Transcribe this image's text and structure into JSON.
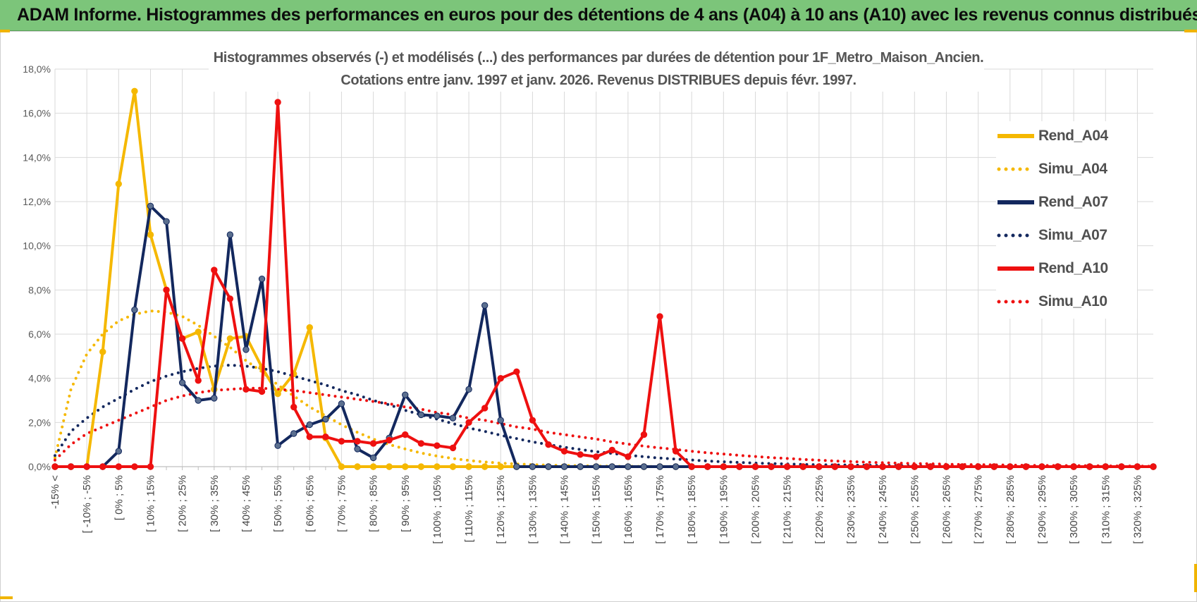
{
  "header": {
    "title": "ADAM Informe. Histogrammes des performances en euros pour des détentions de 4 ans (A04) à 10 ans (A10) avec les revenus connus distribués"
  },
  "chart_data": {
    "type": "line",
    "title": "Histogrammes observés (-) et modélisés (...) des performances par durées de détention pour 1F_Metro_Maison_Ancien.",
    "subtitle": "Cotations entre janv. 1997 et janv. 2026. Revenus DISTRIBUES depuis févr. 1997.",
    "xlabel": "",
    "ylabel": "",
    "ylim": [
      0,
      18
    ],
    "yticks": [
      "0,0%",
      "2,0%",
      "4,0%",
      "6,0%",
      "8,0%",
      "10,0%",
      "12,0%",
      "14,0%",
      "16,0%",
      "18,0%"
    ],
    "x_tick_labels": [
      "-15% <",
      "[ -10% ; -5%",
      "[ 0% ; 5%",
      "[ 10% ; 15%",
      "[ 20% ; 25%",
      "[ 30% ; 35%",
      "[ 40% ; 45%",
      "[ 50% ; 55%",
      "[ 60% ; 65%",
      "[ 70% ; 75%",
      "[ 80% ; 85%",
      "[ 90% ; 95%",
      "[ 100% ; 105%",
      "[ 110% ; 115%",
      "[ 120% ; 125%",
      "[ 130% ; 135%",
      "[ 140% ; 145%",
      "[ 150% ; 155%",
      "[ 160% ; 165%",
      "[ 170% ; 175%",
      "[ 180% ; 185%",
      "[ 190% ; 195%",
      "[ 200% ; 205%",
      "[ 210% ; 215%",
      "[ 220% ; 225%",
      "[ 230% ; 235%",
      "[ 240% ; 245%",
      "[ 250% ; 255%",
      "[ 260% ; 265%",
      "[ 270% ; 275%",
      "[ 280% ; 285%",
      "[ 290% ; 295%",
      "[ 300% ; 305%",
      "[ 310% ; 315%",
      "[ 320% ; 325%"
    ],
    "n_categories": 70,
    "legend_position": "right",
    "series": [
      {
        "name": "Rend_A04",
        "color": "#f5b800",
        "style": "solid",
        "markers": true,
        "values": [
          0,
          0,
          0,
          5.2,
          12.8,
          17,
          10.5,
          8,
          5.8,
          6.1,
          3.5,
          5.8,
          5.9,
          4.5,
          3.3,
          4.2,
          6.3,
          1.3,
          0,
          0,
          0,
          0,
          0,
          0,
          0,
          0,
          0,
          0,
          0,
          0,
          0,
          0,
          0,
          0,
          0,
          0,
          0,
          0,
          0,
          0,
          0,
          0,
          0,
          0,
          0,
          0,
          0,
          0,
          0,
          0,
          0,
          0,
          0,
          0,
          0,
          0,
          0,
          0,
          0,
          0,
          0,
          0,
          0,
          0,
          0,
          0,
          0,
          0,
          0,
          0
        ]
      },
      {
        "name": "Simu_A04",
        "color": "#f5b800",
        "style": "dotted",
        "markers": false,
        "values": [
          0.4,
          3.5,
          5.1,
          6,
          6.6,
          6.9,
          7.05,
          7,
          6.8,
          6.4,
          5.9,
          5.4,
          4.8,
          4.3,
          3.7,
          3.2,
          2.7,
          2.3,
          1.9,
          1.55,
          1.25,
          1,
          0.8,
          0.62,
          0.48,
          0.37,
          0.28,
          0.21,
          0.16,
          0.12,
          0.09,
          0.07,
          0.05,
          0.04,
          0.03,
          0.02,
          0.015,
          0.01,
          0.01,
          0.005,
          0,
          0,
          0,
          0,
          0,
          0,
          0,
          0,
          0,
          0,
          0,
          0,
          0,
          0,
          0,
          0,
          0,
          0,
          0,
          0,
          0,
          0,
          0,
          0,
          0,
          0,
          0,
          0,
          0,
          0
        ]
      },
      {
        "name": "Rend_A07",
        "color": "#13285e",
        "style": "solid",
        "markers": true,
        "values": [
          0,
          0,
          0,
          0,
          0.7,
          7.1,
          11.8,
          11.1,
          3.8,
          3,
          3.1,
          10.5,
          5.3,
          8.5,
          0.95,
          1.5,
          1.9,
          2.15,
          2.85,
          0.8,
          0.4,
          1.3,
          3.25,
          2.35,
          2.3,
          2.2,
          3.5,
          7.3,
          2.1,
          0,
          0,
          0,
          0,
          0,
          0,
          0,
          0,
          0,
          0,
          0,
          0,
          0,
          0,
          0,
          0,
          0,
          0,
          0,
          0,
          0,
          0,
          0,
          0,
          0,
          0,
          0,
          0,
          0,
          0,
          0,
          0,
          0,
          0,
          0,
          0,
          0,
          0,
          0,
          0,
          0
        ]
      },
      {
        "name": "Simu_A07",
        "color": "#13285e",
        "style": "dotted",
        "markers": false,
        "values": [
          0.5,
          1.6,
          2.2,
          2.7,
          3.1,
          3.5,
          3.85,
          4.1,
          4.3,
          4.45,
          4.55,
          4.6,
          4.55,
          4.45,
          4.3,
          4.1,
          3.9,
          3.7,
          3.45,
          3.25,
          3,
          2.8,
          2.55,
          2.35,
          2.15,
          1.95,
          1.75,
          1.6,
          1.42,
          1.27,
          1.12,
          1,
          0.88,
          0.78,
          0.68,
          0.6,
          0.52,
          0.45,
          0.39,
          0.34,
          0.3,
          0.26,
          0.22,
          0.19,
          0.16,
          0.14,
          0.12,
          0.1,
          0.09,
          0.08,
          0.07,
          0.06,
          0.05,
          0.04,
          0.035,
          0.03,
          0.025,
          0.02,
          0.02,
          0.015,
          0.01,
          0.01,
          0.01,
          0.01,
          0.01,
          0.005,
          0.005,
          0,
          0,
          0
        ]
      },
      {
        "name": "Rend_A10",
        "color": "#ee1010",
        "style": "solid",
        "markers": true,
        "values": [
          0,
          0,
          0,
          0,
          0,
          0,
          0,
          8,
          5.8,
          3.9,
          8.9,
          7.6,
          3.5,
          3.4,
          16.5,
          2.7,
          1.35,
          1.35,
          1.15,
          1.15,
          1.05,
          1.2,
          1.45,
          1.05,
          0.95,
          0.85,
          2,
          2.65,
          4,
          4.3,
          2.1,
          1,
          0.7,
          0.55,
          0.45,
          0.75,
          0.45,
          1.45,
          6.8,
          0.7,
          0,
          0,
          0,
          0,
          0,
          0,
          0,
          0,
          0,
          0,
          0,
          0,
          0,
          0,
          0,
          0,
          0,
          0,
          0,
          0,
          0,
          0,
          0,
          0,
          0,
          0,
          0,
          0,
          0,
          0
        ]
      },
      {
        "name": "Simu_A10",
        "color": "#ee1010",
        "style": "dotted",
        "markers": false,
        "values": [
          0.3,
          1,
          1.5,
          1.8,
          2.1,
          2.4,
          2.7,
          3,
          3.2,
          3.35,
          3.45,
          3.5,
          3.55,
          3.55,
          3.5,
          3.45,
          3.35,
          3.25,
          3.15,
          3.05,
          2.95,
          2.85,
          2.7,
          2.6,
          2.45,
          2.35,
          2.2,
          2.1,
          1.95,
          1.8,
          1.7,
          1.55,
          1.45,
          1.35,
          1.25,
          1.12,
          1.02,
          0.93,
          0.85,
          0.78,
          0.7,
          0.63,
          0.57,
          0.51,
          0.46,
          0.41,
          0.37,
          0.33,
          0.29,
          0.26,
          0.23,
          0.2,
          0.18,
          0.16,
          0.14,
          0.13,
          0.11,
          0.1,
          0.09,
          0.08,
          0.07,
          0.06,
          0.055,
          0.05,
          0.045,
          0.04,
          0.035,
          0.03,
          0.025,
          0.02
        ]
      }
    ]
  }
}
